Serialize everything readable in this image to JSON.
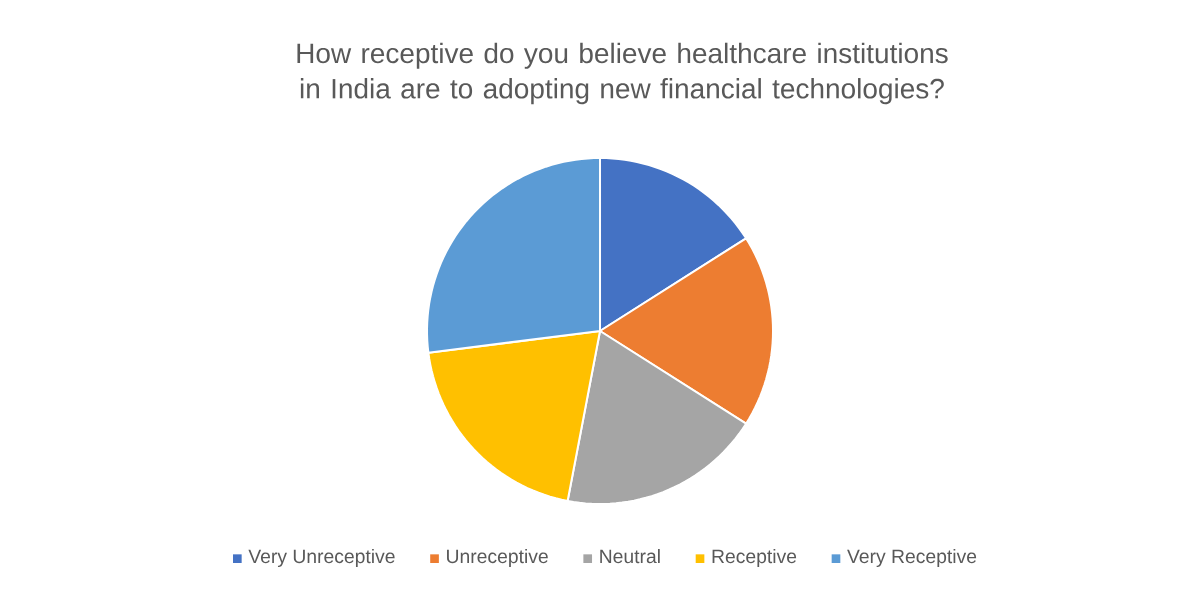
{
  "chart_data": {
    "type": "pie",
    "title": "How receptive do you believe healthcare institutions in India are to adopting new financial technologies?",
    "categories": [
      "Very Unreceptive",
      "Unreceptive",
      "Neutral",
      "Receptive",
      "Very Receptive"
    ],
    "values": [
      16,
      18,
      19,
      20,
      27
    ],
    "colors": [
      "#4472c4",
      "#ed7d31",
      "#a5a5a5",
      "#ffc000",
      "#5b9bd5"
    ],
    "legend": "bottom"
  }
}
